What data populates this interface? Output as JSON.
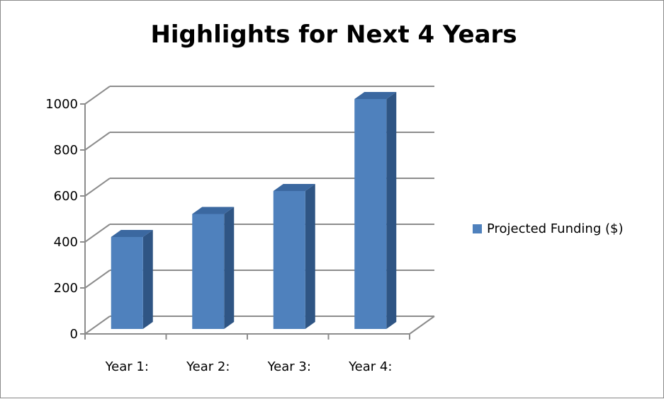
{
  "chart_data": {
    "type": "bar",
    "title": "Highlights for Next 4 Years",
    "categories": [
      "Year 1:",
      "Year 2:",
      "Year 3:",
      "Year 4:"
    ],
    "series": [
      {
        "name": "Projected Funding ($)",
        "values": [
          400,
          500,
          600,
          1000
        ]
      }
    ],
    "yticks": [
      "0",
      "200",
      "400",
      "600",
      "800",
      "1000"
    ],
    "ylim": [
      0,
      1000
    ],
    "grid": true,
    "legend": "right",
    "style": "3d-column",
    "colors": {
      "bar_front": "#4f81bd",
      "bar_side": "#2f5584",
      "bar_top": "#3b68a0",
      "grid": "#8c8c8c"
    }
  }
}
